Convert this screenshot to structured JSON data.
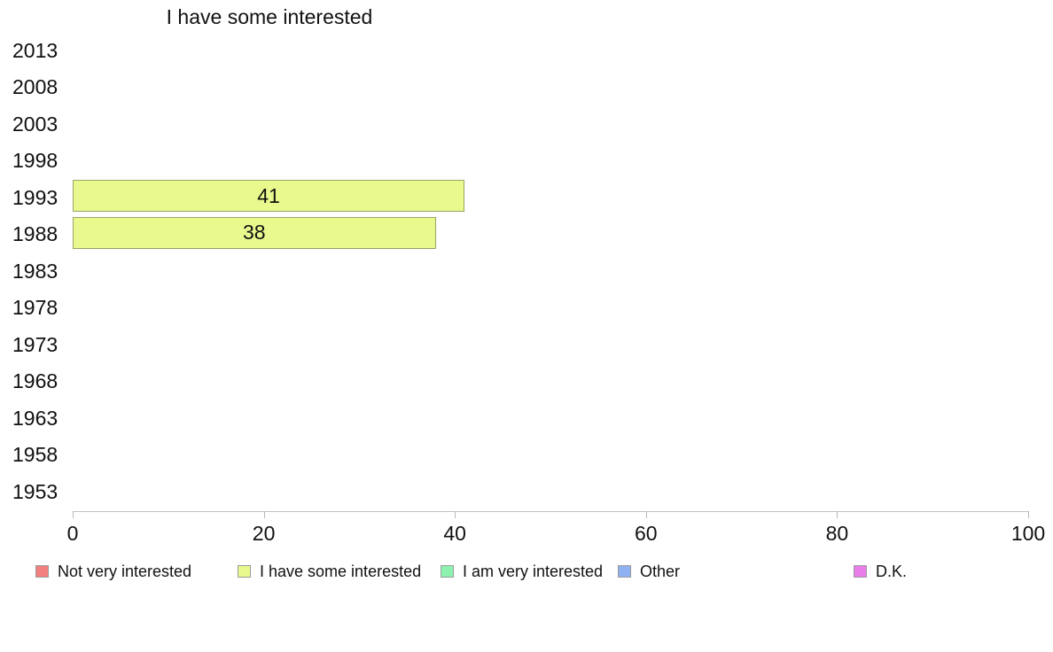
{
  "chart_data": {
    "type": "bar",
    "orientation": "horizontal",
    "title": "I have some interested",
    "categories": [
      "2013",
      "2008",
      "2003",
      "1998",
      "1993",
      "1988",
      "1983",
      "1978",
      "1973",
      "1968",
      "1963",
      "1958",
      "1953"
    ],
    "values": [
      null,
      null,
      null,
      null,
      41,
      38,
      null,
      null,
      null,
      null,
      null,
      null,
      null
    ],
    "data_labels": {
      "1993": "41",
      "1988": "38"
    },
    "xlabel": "",
    "ylabel": "",
    "xlim": [
      0,
      100
    ],
    "xticks": [
      "0",
      "20",
      "40",
      "60",
      "80",
      "100"
    ],
    "grid": "off",
    "bar_fill_color": "#e9f98e",
    "bar_border_color": "#9aa266",
    "legend_position": "bottom",
    "legend": [
      {
        "label": "Not very interested",
        "color": "#f28080"
      },
      {
        "label": "I have some interested",
        "color": "#e9f98e"
      },
      {
        "label": "I am very interested",
        "color": "#8cf2ae"
      },
      {
        "label": "Other",
        "color": "#8fb2f2"
      },
      {
        "label": "D.K.",
        "color": "#e97dea"
      }
    ]
  }
}
